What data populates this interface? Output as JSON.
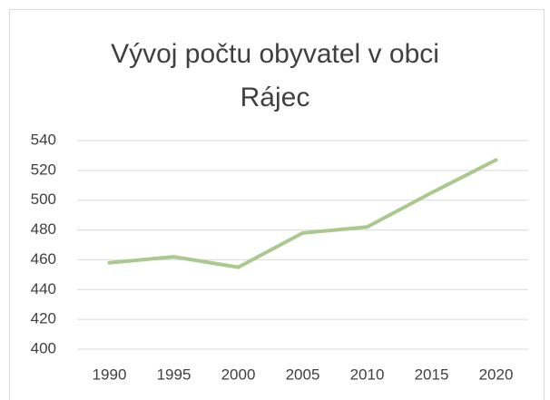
{
  "chart_data": {
    "type": "line",
    "title": "Vývoj počtu obyvatel v obci Rájec",
    "categories": [
      "1990",
      "1995",
      "2000",
      "2005",
      "2010",
      "2015",
      "2020"
    ],
    "values": [
      458,
      462,
      455,
      478,
      482,
      505,
      527
    ],
    "color": "#a9c98f",
    "ylim": [
      400,
      540
    ],
    "yticks": [
      400,
      420,
      440,
      460,
      480,
      500,
      520,
      540
    ],
    "grid": true
  }
}
